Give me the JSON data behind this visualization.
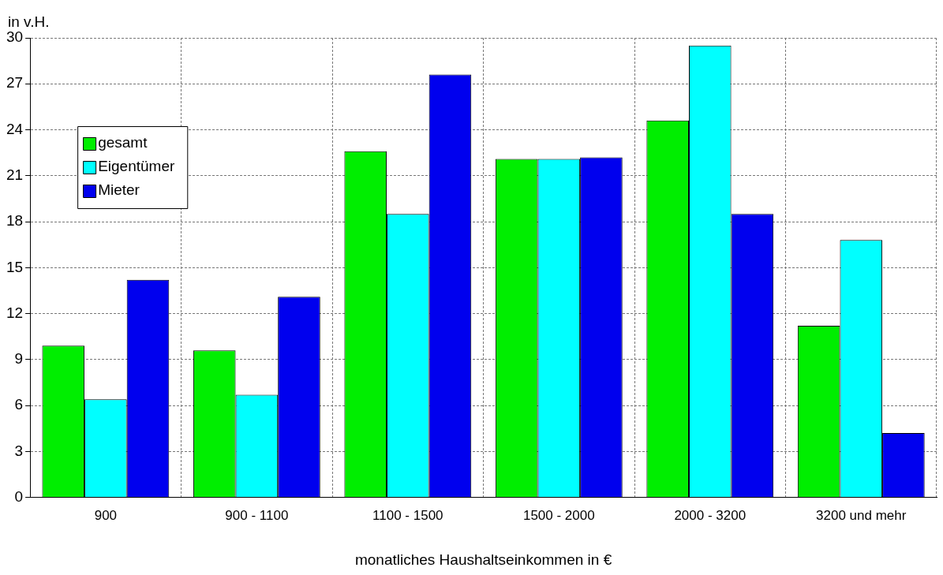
{
  "chart_data": {
    "type": "bar",
    "ylabel": "in v.H.",
    "xlabel": "monatliches Haushaltseinkommen in €",
    "categories": [
      "900",
      "900 - 1100",
      "1100 - 1500",
      "1500 - 2000",
      "2000 - 3200",
      "3200 und mehr"
    ],
    "series": [
      {
        "name": "gesamt",
        "color": "#00ee00",
        "values": [
          9.9,
          9.6,
          22.6,
          22.1,
          24.6,
          11.2
        ]
      },
      {
        "name": "Eigentümer",
        "color": "#00ffff",
        "values": [
          6.4,
          6.7,
          18.5,
          22.1,
          29.5,
          16.8
        ]
      },
      {
        "name": "Mieter",
        "color": "#0000ee",
        "values": [
          14.2,
          13.1,
          27.6,
          22.2,
          18.5,
          4.2
        ]
      }
    ],
    "ylim": [
      0,
      30
    ],
    "yticks": [
      0,
      3,
      6,
      9,
      12,
      15,
      18,
      21,
      24,
      27,
      30
    ],
    "grid": true,
    "legend": "top left"
  }
}
